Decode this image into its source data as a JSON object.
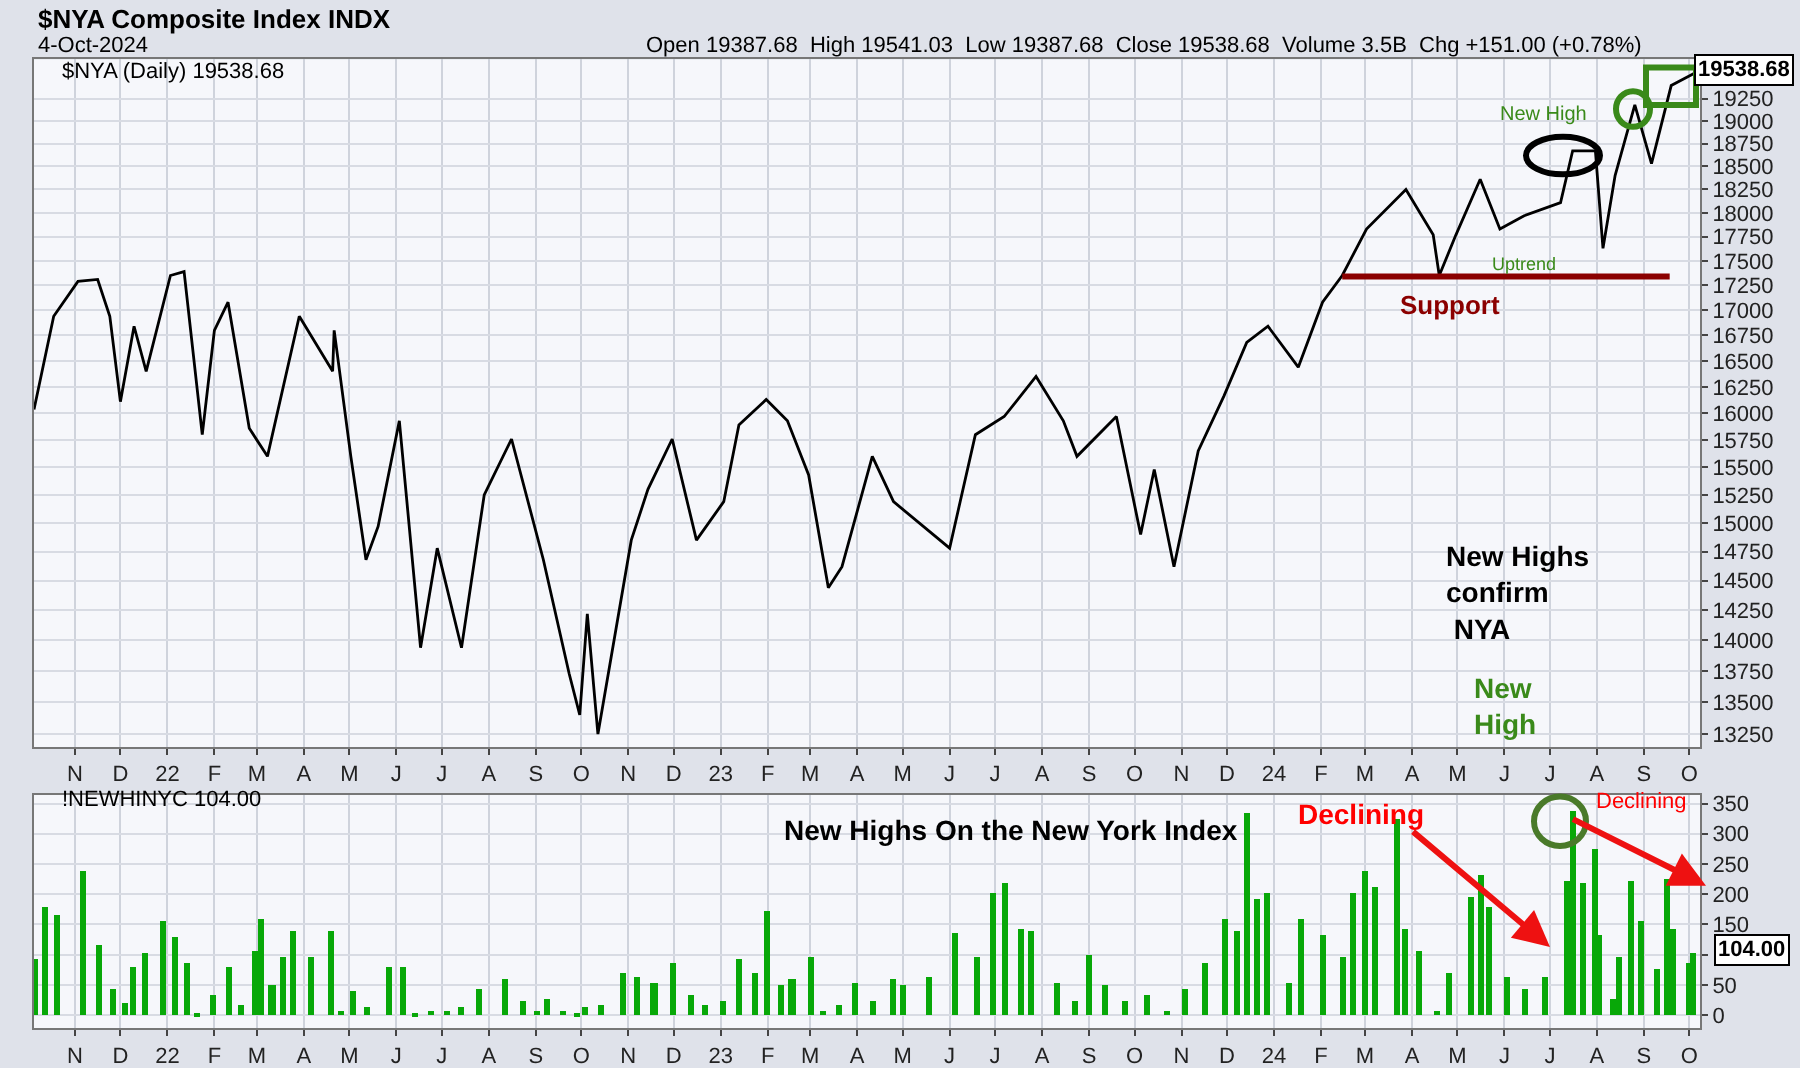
{
  "chart_data": [
    {
      "type": "line",
      "title": "$NYA Composite Index INDX",
      "subtitle": "4-Oct-2024",
      "annotations": [
        "Open 19387.68  High 19541.03  Low 19387.68  Close 19538.68  Volume 3.5B  Chg +151.00 (+0.78%)",
        "$NYA (Daily) 19538.68",
        "19538.68",
        "New High",
        "Uptrend",
        "Support",
        "New Highs\nconfirm\n NYA"
      ],
      "series": [
        {
          "color": "#000000",
          "x": [
            "2021-10-05",
            "2021-10-18",
            "2021-11-03",
            "2021-11-16",
            "2021-11-24",
            "2021-12-01",
            "2021-12-10",
            "2021-12-18",
            "2022-01-03",
            "2022-01-12",
            "2022-01-24",
            "2022-02-01",
            "2022-02-10",
            "2022-02-24",
            "2022-03-08",
            "2022-03-29",
            "2022-04-20",
            "2022-04-21",
            "2022-05-02",
            "2022-05-12",
            "2022-05-20",
            "2022-06-03",
            "2022-06-17",
            "2022-06-28",
            "2022-07-14",
            "2022-07-29",
            "2022-08-16",
            "2022-09-06",
            "2022-09-23",
            "2022-09-30",
            "2022-10-05",
            "2022-10-12",
            "2022-11-03",
            "2022-11-14",
            "2022-11-30",
            "2022-12-16",
            "2023-01-03",
            "2023-01-13",
            "2023-01-31",
            "2023-02-14",
            "2023-02-28",
            "2023-03-13",
            "2023-03-22",
            "2023-04-11",
            "2023-04-25",
            "2023-06-01",
            "2023-06-18",
            "2023-07-07",
            "2023-07-28",
            "2023-08-15",
            "2023-08-24",
            "2023-09-19",
            "2023-10-05",
            "2023-10-14",
            "2023-10-27",
            "2023-11-12",
            "2023-11-29",
            "2023-12-14",
            "2023-12-28",
            "2024-01-17",
            "2024-02-02",
            "2024-02-15",
            "2024-03-02",
            "2024-03-28",
            "2024-04-15",
            "2024-04-19",
            "2024-04-30",
            "2024-05-16",
            "2024-05-29",
            "2024-06-14",
            "2024-07-08",
            "2024-07-16",
            "2024-07-31",
            "2024-08-05",
            "2024-08-13",
            "2024-08-26",
            "2024-09-06",
            "2024-09-19",
            "2024-10-04"
          ],
          "values": [
            16035,
            16940,
            17290,
            17310,
            16940,
            16110,
            16840,
            16400,
            17350,
            17390,
            15800,
            16800,
            17080,
            15860,
            15600,
            16940,
            16400,
            16800,
            15600,
            14680,
            14970,
            15930,
            13940,
            14780,
            13940,
            15250,
            15760,
            14680,
            13730,
            13400,
            14220,
            13250,
            14850,
            15300,
            15760,
            14850,
            15190,
            15890,
            16130,
            15930,
            15430,
            14440,
            14620,
            15600,
            15190,
            14780,
            15800,
            15970,
            16350,
            15930,
            15600,
            15970,
            14900,
            15480,
            14620,
            15650,
            16165,
            16680,
            16840,
            16440,
            17080,
            17350,
            17830,
            18250,
            17770,
            17350,
            17770,
            18360,
            17830,
            17970,
            18110,
            18670,
            18670,
            17630,
            18400,
            19180,
            18530,
            19400,
            19538.68
          ]
        },
        {
          "type": "line",
          "color": "#8b0000",
          "x": [
            "2024-02-15",
            "2024-09-18"
          ],
          "values": [
            17340,
            17340
          ]
        }
      ],
      "log": true,
      "ylim": [
        13150,
        19700
      ],
      "yticks": [
        13250,
        13500,
        13750,
        14000,
        14250,
        14500,
        14750,
        15000,
        15250,
        15500,
        15750,
        16000,
        16250,
        16500,
        16750,
        17000,
        17250,
        17500,
        17750,
        18000,
        18250,
        18500,
        18750,
        19000,
        19250
      ],
      "xlim": [
        "2021-10-05",
        "2024-10-08"
      ],
      "xticks": [
        {
          "value": "2021-11-01",
          "label": "N"
        },
        {
          "value": "2021-12-01",
          "label": "D"
        },
        {
          "value": "2022-01-01",
          "label": "22"
        },
        {
          "value": "2022-02-01",
          "label": "F"
        },
        {
          "value": "2022-03-01",
          "label": "M"
        },
        {
          "value": "2022-04-01",
          "label": "A"
        },
        {
          "value": "2022-05-01",
          "label": "M"
        },
        {
          "value": "2022-06-01",
          "label": "J"
        },
        {
          "value": "2022-07-01",
          "label": "J"
        },
        {
          "value": "2022-08-01",
          "label": "A"
        },
        {
          "value": "2022-09-01",
          "label": "S"
        },
        {
          "value": "2022-10-01",
          "label": "O"
        },
        {
          "value": "2022-11-01",
          "label": "N"
        },
        {
          "value": "2022-12-01",
          "label": "D"
        },
        {
          "value": "2023-01-01",
          "label": "23"
        },
        {
          "value": "2023-02-01",
          "label": "F"
        },
        {
          "value": "2023-03-01",
          "label": "M"
        },
        {
          "value": "2023-04-01",
          "label": "A"
        },
        {
          "value": "2023-05-01",
          "label": "M"
        },
        {
          "value": "2023-06-01",
          "label": "J"
        },
        {
          "value": "2023-07-01",
          "label": "J"
        },
        {
          "value": "2023-08-01",
          "label": "A"
        },
        {
          "value": "2023-09-01",
          "label": "S"
        },
        {
          "value": "2023-10-01",
          "label": "O"
        },
        {
          "value": "2023-11-01",
          "label": "N"
        },
        {
          "value": "2023-12-01",
          "label": "D"
        },
        {
          "value": "2024-01-01",
          "label": "24"
        },
        {
          "value": "2024-02-01",
          "label": "F"
        },
        {
          "value": "2024-03-01",
          "label": "M"
        },
        {
          "value": "2024-04-01",
          "label": "A"
        },
        {
          "value": "2024-05-01",
          "label": "M"
        },
        {
          "value": "2024-06-01",
          "label": "J"
        },
        {
          "value": "2024-07-01",
          "label": "J"
        },
        {
          "value": "2024-08-01",
          "label": "A"
        },
        {
          "value": "2024-09-01",
          "label": "S"
        },
        {
          "value": "2024-10-01",
          "label": "O"
        }
      ],
      "grid": true
    },
    {
      "type": "bar",
      "color": "#08a808",
      "annotations": [
        "!NEWHINYC 104.00",
        "New Highs On the New York Index",
        "104.00",
        "New\nHigh",
        "Declining",
        "Declining"
      ],
      "x": [
        "2021-10-05",
        "2021-10-12",
        "2021-10-20",
        "2021-11-06",
        "2021-11-17",
        "2021-11-26",
        "2021-12-04",
        "2021-12-09",
        "2021-12-17",
        "2021-12-29",
        "2022-01-06",
        "2022-01-14",
        "2022-01-21",
        "2022-01-31",
        "2022-02-11",
        "2022-02-18",
        "2022-02-28",
        "2022-03-04",
        "2022-03-11",
        "2022-03-18",
        "2022-03-25",
        "2022-04-06",
        "2022-04-19",
        "2022-04-25",
        "2022-05-03",
        "2022-05-13",
        "2022-05-27",
        "2022-06-06",
        "2022-06-13",
        "2022-06-24",
        "2022-07-05",
        "2022-07-14",
        "2022-07-26",
        "2022-08-12",
        "2022-08-24",
        "2022-09-02",
        "2022-09-08",
        "2022-09-19",
        "2022-09-28",
        "2022-10-04",
        "2022-10-14",
        "2022-10-28",
        "2022-11-07",
        "2022-11-18",
        "2022-12-01",
        "2022-12-13",
        "2022-12-22",
        "2023-01-03",
        "2023-01-13",
        "2023-01-23",
        "2023-02-01",
        "2023-02-10",
        "2023-02-17",
        "2023-03-02",
        "2023-03-10",
        "2023-03-20",
        "2023-03-31",
        "2023-04-12",
        "2023-04-25",
        "2023-05-01",
        "2023-05-18",
        "2023-06-05",
        "2023-06-19",
        "2023-06-29",
        "2023-07-07",
        "2023-07-18",
        "2023-07-25",
        "2023-08-11",
        "2023-08-23",
        "2023-09-01",
        "2023-09-11",
        "2023-09-25",
        "2023-10-09",
        "2023-10-23",
        "2023-11-03",
        "2023-11-16",
        "2023-11-30",
        "2023-12-08",
        "2023-12-14",
        "2023-12-21",
        "2023-12-27",
        "2024-01-11",
        "2024-01-19",
        "2024-02-02",
        "2024-02-15",
        "2024-02-22",
        "2024-03-01",
        "2024-03-08",
        "2024-03-22",
        "2024-03-28",
        "2024-04-05",
        "2024-04-17",
        "2024-04-26",
        "2024-05-10",
        "2024-05-16",
        "2024-05-22",
        "2024-06-03",
        "2024-06-14",
        "2024-06-28",
        "2024-07-12",
        "2024-07-16",
        "2024-07-23",
        "2024-07-31",
        "2024-08-02",
        "2024-08-12",
        "2024-08-16",
        "2024-08-23",
        "2024-08-30",
        "2024-09-10",
        "2024-09-16",
        "2024-09-20",
        "2024-10-01",
        "2024-10-04"
      ],
      "values": [
        92,
        181,
        165,
        239,
        118,
        44,
        21,
        81,
        102,
        155,
        129,
        86,
        2,
        34,
        81,
        18,
        108,
        160,
        50,
        97,
        139,
        97,
        141,
        7,
        39,
        13,
        81,
        81,
        5,
        7,
        9,
        13,
        44,
        60,
        25,
        7,
        28,
        7,
        3,
        13,
        18,
        71,
        65,
        55,
        86,
        34,
        18,
        23,
        92,
        71,
        173,
        50,
        60,
        97,
        7,
        18,
        55,
        23,
        60,
        50,
        65,
        137,
        97,
        204,
        218,
        144,
        141,
        55,
        23,
        99,
        50,
        23,
        34,
        7,
        44,
        86,
        160,
        139,
        334,
        192,
        202,
        55,
        160,
        134,
        97,
        202,
        239,
        213,
        324,
        144,
        108,
        7,
        71,
        197,
        234,
        181,
        65,
        44,
        65,
        223,
        339,
        218,
        276,
        134,
        28,
        97,
        223,
        155,
        76,
        226,
        144,
        86,
        104
      ],
      "ylim": [
        -22,
        365
      ],
      "yticks": [
        0,
        50,
        {
          "value": 100,
          "label": null
        },
        150,
        200,
        250,
        300,
        350
      ],
      "xlim": [
        "2021-10-05",
        "2024-10-08"
      ],
      "xticks": [
        {
          "value": "2021-11-01",
          "label": "N"
        },
        {
          "value": "2021-12-01",
          "label": "D"
        },
        {
          "value": "2022-01-01",
          "label": "22"
        },
        {
          "value": "2022-02-01",
          "label": "F"
        },
        {
          "value": "2022-03-01",
          "label": "M"
        },
        {
          "value": "2022-04-01",
          "label": "A"
        },
        {
          "value": "2022-05-01",
          "label": "M"
        },
        {
          "value": "2022-06-01",
          "label": "J"
        },
        {
          "value": "2022-07-01",
          "label": "J"
        },
        {
          "value": "2022-08-01",
          "label": "A"
        },
        {
          "value": "2022-09-01",
          "label": "S"
        },
        {
          "value": "2022-10-01",
          "label": "O"
        },
        {
          "value": "2022-11-01",
          "label": "N"
        },
        {
          "value": "2022-12-01",
          "label": "D"
        },
        {
          "value": "2023-01-01",
          "label": "23"
        },
        {
          "value": "2023-02-01",
          "label": "F"
        },
        {
          "value": "2023-03-01",
          "label": "M"
        },
        {
          "value": "2023-04-01",
          "label": "A"
        },
        {
          "value": "2023-05-01",
          "label": "M"
        },
        {
          "value": "2023-06-01",
          "label": "J"
        },
        {
          "value": "2023-07-01",
          "label": "J"
        },
        {
          "value": "2023-08-01",
          "label": "A"
        },
        {
          "value": "2023-09-01",
          "label": "S"
        },
        {
          "value": "2023-10-01",
          "label": "O"
        },
        {
          "value": "2023-11-01",
          "label": "N"
        },
        {
          "value": "2023-12-01",
          "label": "D"
        },
        {
          "value": "2024-01-01",
          "label": "24"
        },
        {
          "value": "2024-02-01",
          "label": "F"
        },
        {
          "value": "2024-03-01",
          "label": "M"
        },
        {
          "value": "2024-04-01",
          "label": "A"
        },
        {
          "value": "2024-05-01",
          "label": "M"
        },
        {
          "value": "2024-06-01",
          "label": "J"
        },
        {
          "value": "2024-07-01",
          "label": "J"
        },
        {
          "value": "2024-08-01",
          "label": "A"
        },
        {
          "value": "2024-09-01",
          "label": "S"
        },
        {
          "value": "2024-10-01",
          "label": "O"
        }
      ],
      "grid": true
    }
  ]
}
